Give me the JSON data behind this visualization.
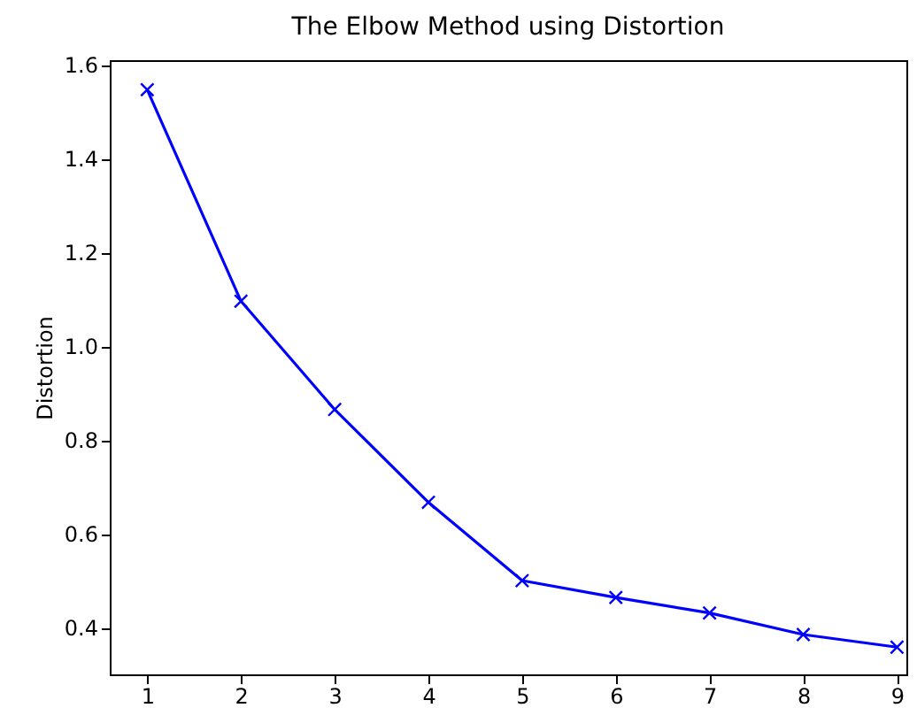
{
  "chart_data": {
    "type": "line",
    "title": "The Elbow Method using Distortion",
    "ylabel": "Distortion",
    "x": [
      1,
      2,
      3,
      4,
      5,
      6,
      7,
      8,
      9
    ],
    "series": [
      {
        "color": "#0000ff",
        "values": [
          1.547,
          1.096,
          0.865,
          0.667,
          0.5,
          0.464,
          0.431,
          0.385,
          0.358
        ]
      }
    ],
    "xlim": [
      0.6,
      9.1
    ],
    "xticks": [
      1,
      2,
      3,
      4,
      5,
      6,
      7,
      8,
      9
    ],
    "ylim": [
      0.3,
      1.61
    ],
    "yticks": [
      0.4,
      0.6,
      0.8,
      {
        "value": 1,
        "label": "1.0"
      },
      1.2,
      1.4,
      1.6
    ],
    "marker": "cross",
    "line_style": "solid"
  }
}
